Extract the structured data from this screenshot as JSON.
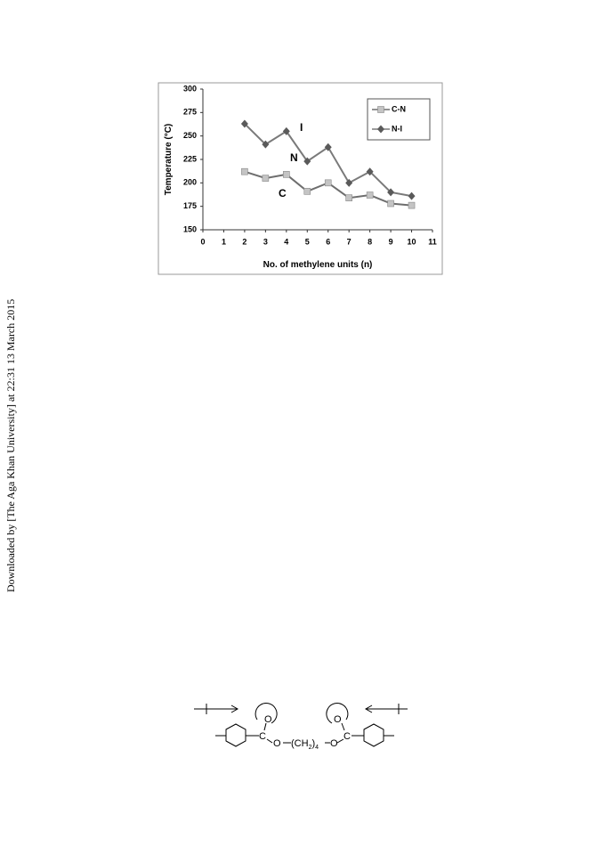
{
  "side_note": "Downloaded by [The Aga Khan University] at 22:31 13 March 2015",
  "chart_data": {
    "type": "line",
    "y_label": "Temperature (°C)",
    "x_label": "No. of methylene units (n)",
    "x": [
      2,
      3,
      4,
      5,
      6,
      7,
      8,
      9,
      10
    ],
    "series": [
      {
        "name": "C-N",
        "color": "#6e6e6e",
        "marker_color": "#c4c4c4",
        "marker": "square",
        "values": [
          212,
          205,
          209,
          191,
          200,
          184,
          187,
          178,
          176
        ]
      },
      {
        "name": "N-I",
        "color": "#7a7a7a",
        "marker_color": "#5a5a5a",
        "marker": "diamond",
        "values": [
          263,
          241,
          255,
          223,
          238,
          200,
          212,
          190,
          186
        ]
      }
    ],
    "annotations": [
      "I",
      "N",
      "C"
    ],
    "xlim": [
      0,
      11
    ],
    "xticks": [
      0,
      1,
      2,
      3,
      4,
      5,
      6,
      7,
      8,
      9,
      10,
      11
    ],
    "ylim": [
      150,
      300
    ],
    "yticks": [
      150,
      175,
      200,
      225,
      250,
      275,
      300
    ],
    "grid": false,
    "legend": "upper right"
  },
  "structure": {
    "labels": [
      "O",
      "C",
      "O",
      "(CH",
      "2",
      ")",
      "4",
      "O",
      "C",
      "O"
    ]
  }
}
